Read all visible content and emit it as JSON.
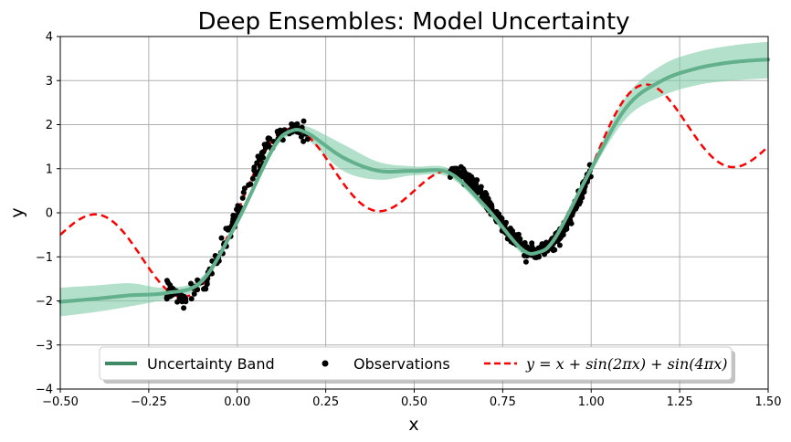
{
  "chart_data": {
    "type": "line",
    "title": "Deep Ensembles: Model Uncertainty",
    "xlabel": "x",
    "ylabel": "y",
    "xlim": [
      -0.5,
      1.5
    ],
    "ylim": [
      -4,
      4
    ],
    "xticks": [
      "−0.50",
      "−0.25",
      "0.00",
      "0.25",
      "0.50",
      "0.75",
      "1.00",
      "1.25",
      "1.50"
    ],
    "yticks": [
      "−4",
      "−3",
      "−2",
      "−1",
      "0",
      "1",
      "2",
      "3",
      "4"
    ],
    "grid": true,
    "legend_position": "bottom-center",
    "legend": {
      "band_label": "Uncertainty Band",
      "obs_label": "Observations",
      "func_label": "y = x + sin(2πx) + sin(4πx)"
    },
    "colors": {
      "band_fill": "#7fcca8",
      "band_line": "#3d8a64",
      "mean_line": "#63b08c",
      "observations": "#000000",
      "true_function": "#ff0000"
    },
    "series": [
      {
        "name": "Uncertainty Band",
        "x": [
          -0.5,
          -0.4,
          -0.3,
          -0.2,
          -0.1,
          0.0,
          0.1,
          0.15,
          0.2,
          0.3,
          0.4,
          0.5,
          0.6,
          0.7,
          0.8,
          0.85,
          0.9,
          1.0,
          1.1,
          1.2,
          1.3,
          1.4,
          1.5
        ],
        "mean": [
          -2.02,
          -1.95,
          -1.87,
          -1.82,
          -1.55,
          -0.2,
          1.45,
          1.85,
          1.8,
          1.25,
          0.95,
          0.95,
          0.9,
          0.15,
          -0.8,
          -0.9,
          -0.55,
          1.0,
          2.4,
          3.0,
          3.28,
          3.42,
          3.48
        ],
        "upper": [
          -1.7,
          -1.65,
          -1.6,
          -1.7,
          -1.45,
          -0.1,
          1.55,
          1.95,
          1.95,
          1.55,
          1.15,
          1.05,
          1.0,
          0.25,
          -0.7,
          -0.8,
          -0.45,
          1.1,
          2.65,
          3.35,
          3.65,
          3.8,
          3.88
        ],
        "lower": [
          -2.35,
          -2.25,
          -2.12,
          -1.95,
          -1.65,
          -0.3,
          1.35,
          1.75,
          1.65,
          0.95,
          0.75,
          0.85,
          0.8,
          0.05,
          -0.9,
          -1.0,
          -0.65,
          0.9,
          2.15,
          2.65,
          2.9,
          3.0,
          3.05
        ]
      },
      {
        "name": "Observations",
        "x_ranges": [
          [
            -0.2,
            0.2
          ],
          [
            0.6,
            1.0
          ]
        ],
        "noise_sd": [
          0.2,
          0.15
        ]
      },
      {
        "name": "y = x + sin(2πx) + sin(4πx)",
        "function": "x + sin(2*pi*x) + sin(4*pi*x)",
        "x_range": [
          -0.5,
          1.5
        ]
      }
    ]
  }
}
